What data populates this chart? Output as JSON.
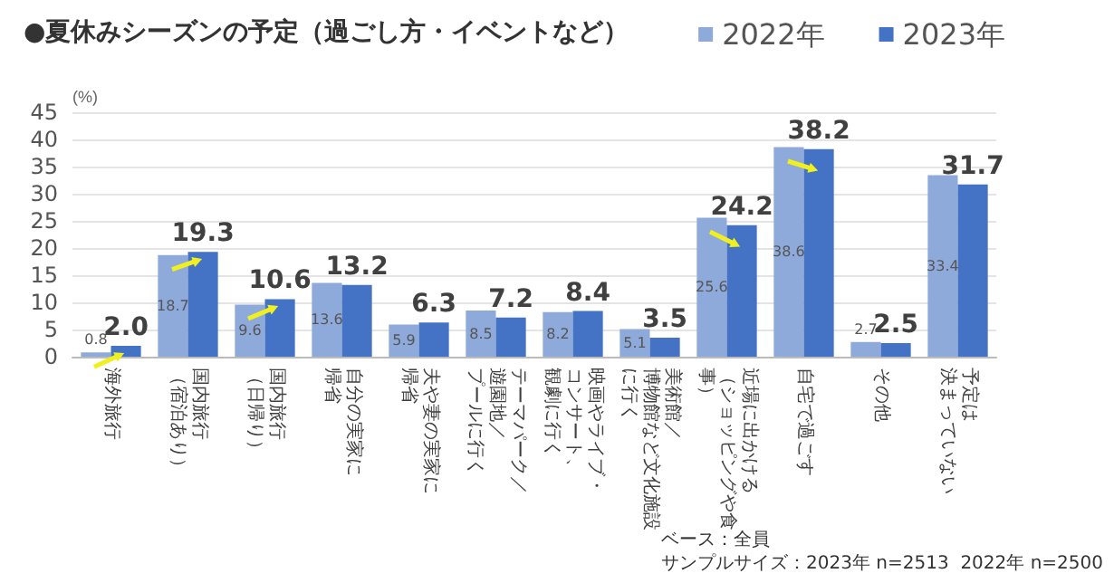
{
  "chart_data": {
    "type": "bar",
    "title": "●夏休みシーズンの予定（過ごし方・イベントなど）",
    "ylabel": "(%)",
    "categories": [
      "海外旅行",
      "国内旅行（宿泊あり）",
      "国内旅行（日帰り）",
      "自分の実家に帰省",
      "夫や妻の実家に帰省",
      "テーマパーク／遊園地／プールに行く",
      "映画やライブ・コンサート、観劇に行く",
      "美術館／博物館など文化施設に行く",
      "近場に出かける（ショッピングや食事）",
      "自宅で過ごす",
      "その他",
      "予定は決まっていない"
    ],
    "series": [
      {
        "name": "2022年",
        "color": "#8eaadb",
        "values": [
          0.8,
          18.7,
          9.6,
          13.6,
          5.9,
          8.5,
          8.2,
          5.1,
          25.6,
          38.6,
          2.7,
          33.4
        ],
        "value_labels": [
          "0.8",
          "18.7",
          "9.6",
          "13.6",
          "5.9",
          "8.5",
          "8.2",
          "5.1",
          "25.6",
          "38.6",
          "2.7",
          "33.4"
        ]
      },
      {
        "name": "2023年",
        "color": "#4472c4",
        "values": [
          2.0,
          19.3,
          10.6,
          13.2,
          6.3,
          7.2,
          8.4,
          3.5,
          24.2,
          38.2,
          2.5,
          31.7
        ],
        "value_labels": [
          "2.0",
          "19.3",
          "10.6",
          "13.2",
          "6.3",
          "7.2",
          "8.4",
          "3.5",
          "24.2",
          "38.2",
          "2.5",
          "31.7"
        ]
      }
    ],
    "ylim": [
      0,
      45
    ],
    "yticks": [
      0,
      5,
      10,
      15,
      20,
      25,
      30,
      35,
      40,
      45
    ],
    "grid": "y",
    "legend": "top right",
    "annotations": [
      "ベース：全員",
      "サンプルサイズ：2023年 n=2513  2022年 n=2500"
    ]
  }
}
